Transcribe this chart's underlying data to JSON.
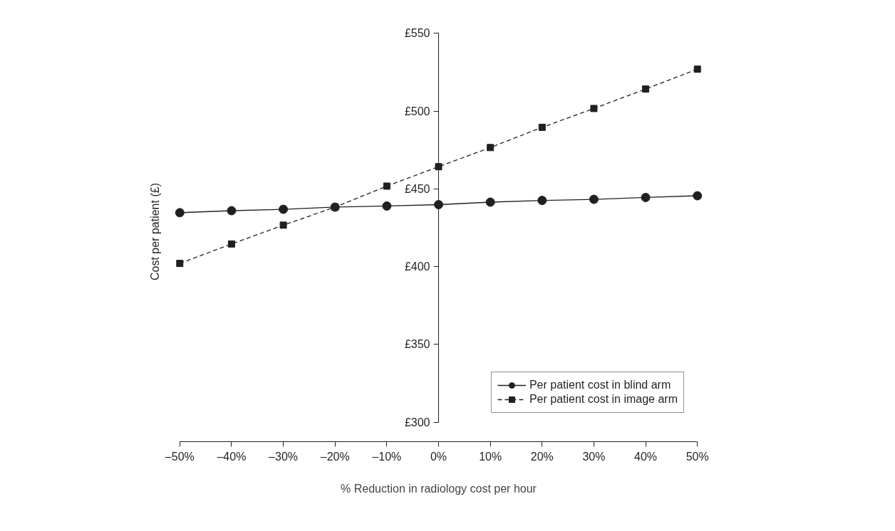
{
  "chart_data": {
    "type": "line",
    "xlabel": "% Reduction in radiology cost per hour",
    "ylabel": "Cost per patient (£)",
    "x": [
      -50,
      -40,
      -30,
      -20,
      -10,
      0,
      10,
      20,
      30,
      40,
      50
    ],
    "series": [
      {
        "name": "Per patient cost in blind arm",
        "color": "#231f20",
        "marker": "circle",
        "line_style": "solid",
        "values": [
          434.7,
          436.0,
          436.9,
          438.3,
          439.0,
          439.9,
          441.5,
          442.6,
          443.3,
          444.5,
          445.6
        ]
      },
      {
        "name": "Per patient cost in image arm",
        "color": "#231f20",
        "marker": "square",
        "line_style": "dashed",
        "values": [
          402.1,
          414.6,
          426.7,
          438.3,
          451.8,
          464.3,
          476.6,
          489.6,
          501.7,
          514.2,
          527.0
        ]
      }
    ],
    "xlim": [
      -50,
      50
    ],
    "ylim": [
      300,
      550
    ],
    "xticks": [
      {
        "value": -50,
        "label": "–50%"
      },
      {
        "value": -40,
        "label": "–40%"
      },
      {
        "value": -30,
        "label": "–30%"
      },
      {
        "value": -20,
        "label": "–20%"
      },
      {
        "value": -10,
        "label": "–10%"
      },
      {
        "value": 0,
        "label": "0%"
      },
      {
        "value": 10,
        "label": "10%"
      },
      {
        "value": 20,
        "label": "20%"
      },
      {
        "value": 30,
        "label": "30%"
      },
      {
        "value": 40,
        "label": "40%"
      },
      {
        "value": 50,
        "label": "50%"
      }
    ],
    "yticks": [
      {
        "value": 300,
        "label": "£300"
      },
      {
        "value": 350,
        "label": "£350"
      },
      {
        "value": 400,
        "label": "£400"
      },
      {
        "value": 450,
        "label": "£450"
      },
      {
        "value": 500,
        "label": "£500"
      },
      {
        "value": 550,
        "label": "£550"
      }
    ],
    "grid": false,
    "legend": "bottom right"
  }
}
